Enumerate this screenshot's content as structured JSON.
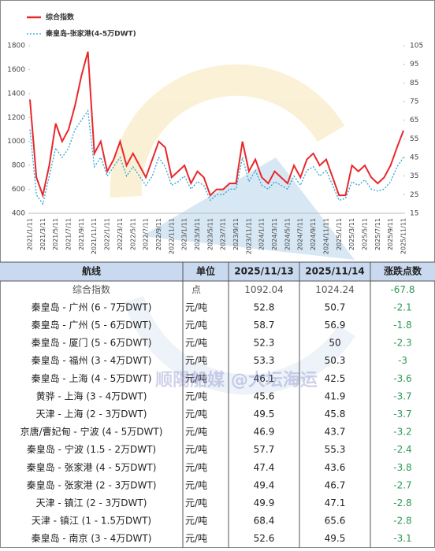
{
  "chart_data": {
    "type": "line",
    "categories": [
      "2021/1/11",
      null,
      "2021/3/11",
      null,
      "2021/5/11",
      null,
      "2021/7/11",
      null,
      "2021/9/11",
      null,
      "2021/11/11",
      null,
      "2022/1/11",
      null,
      "2022/3/11",
      null,
      "2022/5/11",
      null,
      "2022/7/11",
      null,
      "2022/9/11",
      null,
      "2022/11/11",
      null,
      "2023/1/11",
      null,
      "2023/3/11",
      null,
      "2023/5/11",
      null,
      "2023/7/11",
      null,
      "2023/9/11",
      null,
      "2023/11/11",
      null,
      "2024/1/11",
      null,
      "2024/3/11",
      null,
      "2024/5/11",
      null,
      "2024/7/11",
      null,
      "2024/9/11",
      null,
      "2024/11/11",
      null,
      "2025/1/11",
      null,
      "2025/3/11",
      null,
      "2025/5/11",
      null,
      "2025/7/11",
      null,
      "2025/9/11",
      null,
      "2025/11/11"
    ],
    "series": [
      {
        "name": "综合指数",
        "color": "#e8282b",
        "style": "solid",
        "values": [
          1350,
          700,
          550,
          800,
          1150,
          1000,
          1100,
          1300,
          1550,
          1750,
          900,
          1000,
          750,
          850,
          1000,
          800,
          900,
          800,
          700,
          850,
          1000,
          950,
          700,
          750,
          800,
          650,
          750,
          700,
          550,
          600,
          600,
          650,
          650,
          1000,
          750,
          850,
          700,
          650,
          750,
          700,
          650,
          800,
          700,
          850,
          900,
          800,
          850,
          700,
          550,
          550,
          800,
          750,
          800,
          700,
          650,
          700,
          800,
          950,
          1092
        ]
      },
      {
        "name": "秦皇岛-张家港(4-5万DWT)",
        "color": "#2aa6d6",
        "style": "dotted",
        "axis": "y2",
        "values": [
          60,
          25,
          20,
          35,
          50,
          45,
          50,
          60,
          65,
          70,
          40,
          45,
          35,
          40,
          45,
          35,
          40,
          35,
          30,
          35,
          45,
          40,
          30,
          32,
          35,
          28,
          32,
          30,
          22,
          25,
          25,
          28,
          28,
          45,
          32,
          38,
          30,
          28,
          32,
          30,
          28,
          35,
          30,
          38,
          40,
          35,
          38,
          30,
          22,
          23,
          32,
          30,
          33,
          28,
          27,
          28,
          32,
          40,
          45
        ]
      }
    ],
    "ylim": [
      400,
      1800
    ],
    "yticks": [
      400,
      600,
      800,
      1000,
      1200,
      1400,
      1600,
      1800
    ],
    "y2lim": [
      15,
      105
    ],
    "y2ticks": [
      15,
      25,
      35,
      45,
      55,
      65,
      75,
      85,
      95,
      105
    ],
    "grid": false,
    "legend": "top-left"
  },
  "table": {
    "header": [
      "航线",
      "单位",
      "2025/11/13",
      "2025/11/14",
      "涨跌点数"
    ],
    "rows": [
      [
        "综合指数",
        "点",
        "1092.04",
        "1024.24",
        "-67.8"
      ],
      [
        "秦皇岛 - 广州 (6 - 7万DWT)",
        "元/吨",
        "52.8",
        "50.7",
        "-2.1"
      ],
      [
        "秦皇岛 - 广州 (5 - 6万DWT)",
        "元/吨",
        "58.7",
        "56.9",
        "-1.8"
      ],
      [
        "秦皇岛 - 厦门 (5 - 6万DWT)",
        "元/吨",
        "52.3",
        "50",
        "-2.3"
      ],
      [
        "秦皇岛 - 福州 (3 - 4万DWT)",
        "元/吨",
        "53.3",
        "50.3",
        "-3"
      ],
      [
        "秦皇岛 - 上海 (4 - 5万DWT)",
        "元/吨",
        "46.1",
        "42.5",
        "-3.6"
      ],
      [
        "黄骅 - 上海 (3 - 4万DWT)",
        "元/吨",
        "45.6",
        "41.9",
        "-3.7"
      ],
      [
        "天津 - 上海 (2 - 3万DWT)",
        "元/吨",
        "49.5",
        "45.8",
        "-3.7"
      ],
      [
        "京唐/曹妃甸 - 宁波 (4 - 5万DWT)",
        "元/吨",
        "46.9",
        "43.7",
        "-3.2"
      ],
      [
        "秦皇岛 - 宁波 (1.5 - 2万DWT)",
        "元/吨",
        "57.7",
        "55.3",
        "-2.4"
      ],
      [
        "秦皇岛 - 张家港 (4 - 5万DWT)",
        "元/吨",
        "47.4",
        "43.6",
        "-3.8"
      ],
      [
        "秦皇岛 - 张家港 (2 - 3万DWT)",
        "元/吨",
        "49.4",
        "46.7",
        "-2.7"
      ],
      [
        "天津 - 镇江 (2 - 3万DWT)",
        "元/吨",
        "49.9",
        "47.1",
        "-2.8"
      ],
      [
        "天津 - 镇江 (1 - 1.5万DWT)",
        "元/吨",
        "68.4",
        "65.6",
        "-2.8"
      ],
      [
        "秦皇岛 - 南京 (3 - 4万DWT)",
        "元/吨",
        "52.6",
        "49.5",
        "-3.1"
      ]
    ]
  },
  "watermark": "顺陽船媒 @大坛海运"
}
